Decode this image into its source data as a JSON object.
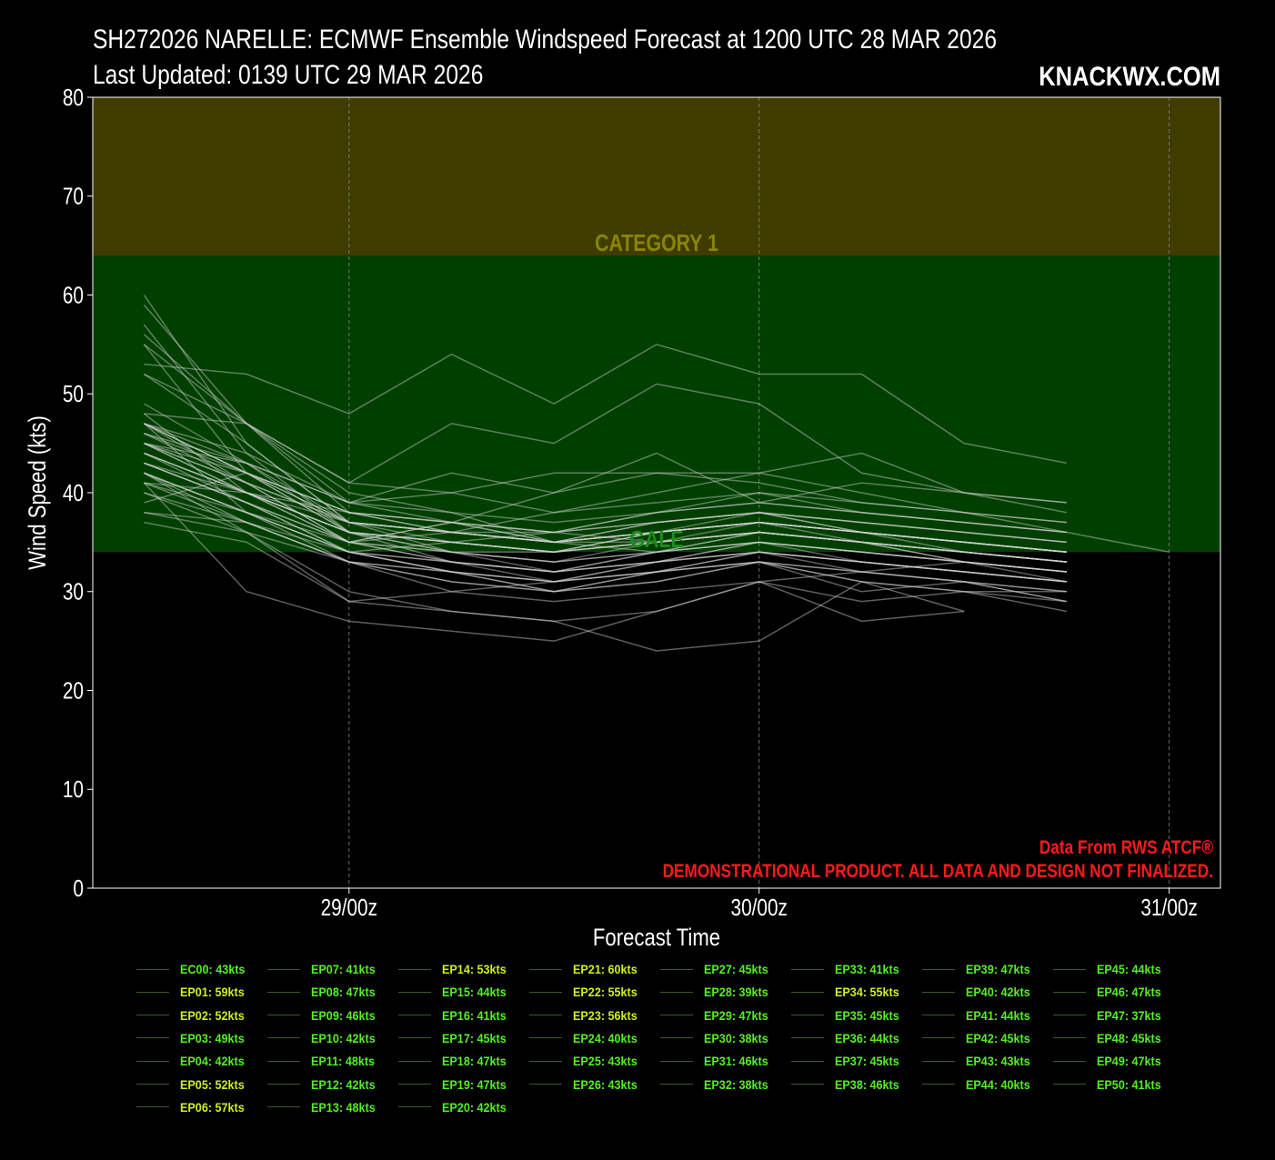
{
  "header": {
    "title_line1": "SH272026 NARELLE: ECMWF Ensemble Windspeed Forecast at 1200 UTC 28 MAR 2026",
    "title_line2": "Last Updated: 0139 UTC 29 MAR 2026",
    "brand": "KNACKWX.COM"
  },
  "annotations": {
    "source": "Data From RWS ATCF®",
    "disclaimer": "DEMONSTRATIONAL PRODUCT. ALL DATA AND DESIGN NOT FINALIZED."
  },
  "colors": {
    "background": "#000000",
    "cat1_band": "#3f3c00",
    "gale_band": "#003f00",
    "cat1_label": "#8a8500",
    "gale_label": "#1f8a1f",
    "member_line": "#d0d0d0",
    "annotation": "#ff1a1a",
    "legend_green": "#55ee22",
    "legend_yellow": "#ccee22"
  },
  "chart_data": {
    "type": "line",
    "xlabel": "Forecast Time",
    "ylabel": "Wind Speed (kts)",
    "ylim": [
      0,
      80
    ],
    "yticks": [
      "0",
      "10",
      "20",
      "30",
      "40",
      "50",
      "60",
      "70",
      "80"
    ],
    "x_tick_labels": [
      {
        "hour": 12,
        "label": "29/00z"
      },
      {
        "hour": 36,
        "label": "30/00z"
      },
      {
        "hour": 60,
        "label": "31/00z"
      }
    ],
    "xlim_hours": [
      -3,
      63
    ],
    "grid": "vertical dashed at x ticks",
    "bands": [
      {
        "label": "CATEGORY 1",
        "from": 64,
        "to": 80
      },
      {
        "label": "GALE",
        "from": 34,
        "to": 64
      }
    ],
    "x_hours": [
      0,
      6,
      12,
      18,
      24,
      30,
      36,
      42,
      48,
      54,
      60
    ],
    "series": [
      {
        "name": "EC00: 43kts",
        "values": [
          43,
          40,
          38,
          37,
          35,
          34,
          35,
          33,
          32,
          31
        ]
      },
      {
        "name": "EP01: 59kts",
        "values": [
          59,
          47,
          38,
          36,
          36,
          35,
          36,
          35,
          34,
          33
        ]
      },
      {
        "name": "EP02: 52kts",
        "values": [
          52,
          47,
          40,
          38,
          35,
          36,
          37,
          35,
          33,
          32
        ]
      },
      {
        "name": "EP03: 49kts",
        "values": [
          49,
          43,
          36,
          33,
          31,
          33,
          34,
          32,
          31,
          29
        ]
      },
      {
        "name": "EP04: 42kts",
        "values": [
          42,
          38,
          33,
          31,
          30,
          31,
          33,
          31,
          30,
          28
        ]
      },
      {
        "name": "EP05: 52kts",
        "values": [
          52,
          45,
          37,
          34,
          33,
          34,
          36,
          35,
          34,
          33
        ]
      },
      {
        "name": "EP06: 57kts",
        "values": [
          57,
          44,
          36,
          34,
          34,
          36,
          37,
          36,
          35,
          34
        ]
      },
      {
        "name": "EP07: 41kts",
        "values": [
          41,
          30,
          27,
          26,
          25,
          28,
          31,
          32,
          33,
          31
        ]
      },
      {
        "name": "EP08: 47kts",
        "values": [
          47,
          38,
          35,
          36,
          38,
          40,
          42,
          40,
          38,
          36,
          34
        ]
      },
      {
        "name": "EP09: 46kts",
        "values": [
          46,
          42,
          36,
          34,
          32,
          33,
          35,
          34,
          33,
          32
        ]
      },
      {
        "name": "EP10: 42kts",
        "values": [
          42,
          36,
          29,
          30,
          31,
          32,
          33,
          30,
          31,
          29
        ]
      },
      {
        "name": "EP11: 48kts",
        "values": [
          48,
          40,
          35,
          33,
          32,
          34,
          36,
          35,
          34,
          33
        ]
      },
      {
        "name": "EP12: 42kts",
        "values": [
          42,
          37,
          33,
          30,
          29,
          30,
          31,
          29,
          30,
          30
        ]
      },
      {
        "name": "EP13: 48kts",
        "values": [
          48,
          47,
          41,
          40,
          38,
          39,
          40,
          39,
          38,
          37
        ]
      },
      {
        "name": "EP14: 53kts",
        "values": [
          53,
          52,
          48,
          54,
          49,
          55,
          52,
          52,
          45,
          43
        ]
      },
      {
        "name": "EP15: 44kts",
        "values": [
          44,
          39,
          35,
          37,
          35,
          37,
          38,
          36,
          35,
          34
        ]
      },
      {
        "name": "EP16: 41kts",
        "values": [
          41,
          37,
          33,
          32,
          31,
          33,
          34,
          33,
          32,
          31
        ]
      },
      {
        "name": "EP17: 45kts",
        "values": [
          45,
          43,
          39,
          42,
          40,
          42,
          41,
          39,
          38,
          37
        ]
      },
      {
        "name": "EP18: 47kts",
        "values": [
          47,
          42,
          37,
          35,
          34,
          36,
          37,
          36,
          35,
          34
        ]
      },
      {
        "name": "EP19: 47kts",
        "values": [
          47,
          41,
          35,
          37,
          40,
          44,
          39,
          41,
          40,
          39
        ]
      },
      {
        "name": "EP20: 42kts",
        "values": [
          42,
          38,
          34,
          32,
          30,
          32,
          33,
          31,
          30,
          29
        ]
      },
      {
        "name": "EP21: 60kts",
        "values": [
          60,
          45,
          37,
          36,
          35,
          36,
          38,
          37,
          36,
          35
        ]
      },
      {
        "name": "EP22: 55kts",
        "values": [
          55,
          42,
          36,
          35,
          34,
          35,
          36,
          35,
          34,
          33
        ]
      },
      {
        "name": "EP23: 56kts",
        "values": [
          56,
          47,
          41,
          47,
          45,
          51,
          49,
          42,
          40,
          39
        ]
      },
      {
        "name": "EP24: 40kts",
        "values": [
          40,
          36,
          30,
          28,
          27,
          24,
          25,
          31,
          28
        ]
      },
      {
        "name": "EP25: 43kts",
        "values": [
          43,
          39,
          34,
          35,
          36,
          37,
          38,
          36,
          34,
          33
        ]
      },
      {
        "name": "EP26: 43kts",
        "values": [
          43,
          39,
          34,
          32,
          30,
          32,
          34,
          33,
          32,
          31
        ]
      },
      {
        "name": "EP27: 45kts",
        "values": [
          45,
          40,
          36,
          35,
          34,
          35,
          37,
          36,
          35,
          34
        ]
      },
      {
        "name": "EP28: 39kts",
        "values": [
          39,
          42,
          38,
          36,
          35,
          35,
          36,
          35,
          33,
          32
        ]
      },
      {
        "name": "EP29: 47kts",
        "values": [
          47,
          43,
          37,
          36,
          35,
          37,
          38,
          37,
          36,
          35
        ]
      },
      {
        "name": "EP30: 38kts",
        "values": [
          38,
          36,
          33,
          31,
          30,
          31,
          33,
          32,
          31,
          30
        ]
      },
      {
        "name": "EP31: 46kts",
        "values": [
          46,
          41,
          35,
          33,
          32,
          34,
          35,
          34,
          33,
          32
        ]
      },
      {
        "name": "EP32: 38kts",
        "values": [
          38,
          37,
          34,
          32,
          31,
          32,
          34,
          33,
          32,
          31
        ]
      },
      {
        "name": "EP33: 41kts",
        "values": [
          41,
          40,
          37,
          36,
          35,
          36,
          37,
          36,
          35,
          34
        ]
      },
      {
        "name": "EP34: 55kts",
        "values": [
          55,
          47,
          39,
          37,
          36,
          38,
          40,
          38,
          37,
          36
        ]
      },
      {
        "name": "EP35: 45kts",
        "values": [
          45,
          40,
          35,
          34,
          33,
          35,
          36,
          35,
          34,
          33
        ]
      },
      {
        "name": "EP36: 44kts",
        "values": [
          44,
          40,
          36,
          35,
          34,
          36,
          37,
          36,
          35,
          34
        ]
      },
      {
        "name": "EP37: 45kts",
        "values": [
          45,
          42,
          38,
          37,
          36,
          38,
          39,
          38,
          37,
          36
        ]
      },
      {
        "name": "EP38: 46kts",
        "values": [
          46,
          43,
          39,
          38,
          37,
          38,
          39,
          38,
          37,
          36
        ]
      },
      {
        "name": "EP39: 47kts",
        "values": [
          47,
          44,
          39,
          40,
          42,
          42,
          42,
          44,
          40,
          38
        ]
      },
      {
        "name": "EP40: 42kts",
        "values": [
          42,
          38,
          34,
          33,
          32,
          33,
          35,
          34,
          33,
          32
        ]
      },
      {
        "name": "EP41: 44kts",
        "values": [
          44,
          40,
          36,
          35,
          34,
          35,
          36,
          35,
          34,
          33
        ]
      },
      {
        "name": "EP42: 45kts",
        "values": [
          45,
          41,
          37,
          36,
          35,
          36,
          37,
          36,
          35,
          34
        ]
      },
      {
        "name": "EP43: 43kts",
        "values": [
          43,
          39,
          35,
          34,
          33,
          34,
          35,
          34,
          33,
          32
        ]
      },
      {
        "name": "EP44: 40kts",
        "values": [
          40,
          37,
          33,
          32,
          31,
          32,
          33,
          32,
          31,
          30
        ]
      },
      {
        "name": "EP45: 44kts",
        "values": [
          44,
          40,
          36,
          35,
          34,
          35,
          36,
          35,
          34,
          33
        ]
      },
      {
        "name": "EP46: 47kts",
        "values": [
          47,
          42,
          37,
          36,
          35,
          36,
          37,
          36,
          35,
          34
        ]
      },
      {
        "name": "EP47: 37kts",
        "values": [
          37,
          35,
          29,
          28,
          27,
          28,
          31,
          27,
          28
        ]
      },
      {
        "name": "EP48: 45kts",
        "values": [
          45,
          41,
          37,
          36,
          35,
          36,
          37,
          36,
          35,
          34
        ]
      },
      {
        "name": "EP49: 47kts",
        "values": [
          47,
          42,
          38,
          37,
          36,
          37,
          38,
          37,
          36,
          35
        ]
      },
      {
        "name": "EP50: 41kts",
        "values": [
          41,
          38,
          34,
          33,
          32,
          33,
          34,
          33,
          32,
          31
        ]
      }
    ]
  }
}
